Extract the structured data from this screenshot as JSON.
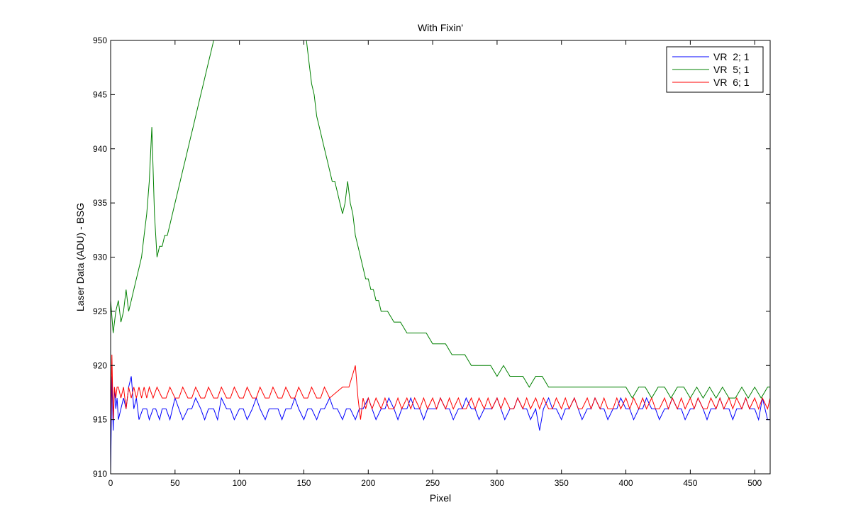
{
  "chart_data": {
    "type": "line",
    "title": "With Fixin'",
    "xlabel": "Pixel",
    "ylabel": "Laser Data (ADU) - BSG",
    "xlim": [
      0,
      512
    ],
    "ylim": [
      910,
      950
    ],
    "xticks": [
      0,
      50,
      100,
      150,
      200,
      250,
      300,
      350,
      400,
      450,
      500
    ],
    "yticks": [
      910,
      915,
      920,
      925,
      930,
      935,
      940,
      945,
      950
    ],
    "grid": false,
    "legend_position": "top-right",
    "series": [
      {
        "name": "VR  2; 1",
        "color": "#0000ff",
        "x": [
          0,
          1,
          2,
          3,
          4,
          5,
          6,
          8,
          10,
          12,
          14,
          16,
          18,
          20,
          22,
          25,
          28,
          30,
          33,
          35,
          38,
          40,
          43,
          46,
          50,
          53,
          56,
          60,
          63,
          66,
          70,
          73,
          76,
          80,
          83,
          86,
          90,
          93,
          96,
          100,
          103,
          106,
          110,
          113,
          116,
          120,
          123,
          126,
          130,
          133,
          136,
          140,
          143,
          146,
          150,
          153,
          156,
          160,
          163,
          166,
          170,
          173,
          176,
          180,
          183,
          186,
          190,
          193,
          196,
          200,
          203,
          206,
          210,
          213,
          216,
          220,
          223,
          226,
          230,
          233,
          236,
          240,
          243,
          246,
          250,
          253,
          256,
          260,
          263,
          266,
          270,
          273,
          276,
          280,
          283,
          286,
          290,
          293,
          296,
          300,
          303,
          306,
          310,
          313,
          316,
          320,
          323,
          326,
          330,
          333,
          336,
          340,
          343,
          346,
          350,
          353,
          356,
          360,
          363,
          366,
          370,
          373,
          376,
          380,
          383,
          386,
          390,
          393,
          396,
          400,
          403,
          406,
          410,
          413,
          416,
          420,
          423,
          426,
          430,
          433,
          436,
          440,
          443,
          446,
          450,
          453,
          456,
          460,
          463,
          466,
          470,
          473,
          476,
          480,
          483,
          486,
          490,
          493,
          496,
          500,
          503,
          506,
          510,
          512
        ],
        "values": [
          910,
          919,
          914,
          918,
          916,
          917,
          915,
          916,
          917,
          916,
          918,
          919,
          916,
          917,
          915,
          916,
          916,
          915,
          916,
          916,
          915,
          916,
          916,
          915,
          917,
          916,
          915,
          916,
          916,
          917,
          916,
          915,
          916,
          916,
          915,
          917,
          916,
          916,
          915,
          916,
          916,
          915,
          916,
          917,
          916,
          915,
          916,
          916,
          916,
          915,
          916,
          916,
          917,
          916,
          915,
          916,
          916,
          915,
          916,
          916,
          917,
          916,
          916,
          915,
          916,
          916,
          915,
          916,
          916,
          917,
          916,
          915,
          916,
          916,
          917,
          916,
          915,
          916,
          916,
          917,
          916,
          916,
          915,
          916,
          916,
          916,
          917,
          916,
          916,
          915,
          916,
          916,
          917,
          916,
          916,
          915,
          916,
          916,
          916,
          917,
          916,
          915,
          916,
          916,
          917,
          916,
          916,
          915,
          916,
          914,
          916,
          917,
          916,
          916,
          915,
          916,
          916,
          917,
          916,
          915,
          916,
          916,
          917,
          916,
          916,
          915,
          916,
          916,
          917,
          916,
          916,
          915,
          916,
          916,
          917,
          916,
          916,
          915,
          916,
          916,
          917,
          916,
          916,
          915,
          916,
          916,
          917,
          916,
          915,
          916,
          916,
          917,
          916,
          916,
          915,
          916,
          916,
          917,
          916,
          916,
          915,
          917,
          915,
          915
        ]
      },
      {
        "name": "VR  5; 1",
        "color": "#008000",
        "x": [
          0,
          2,
          4,
          6,
          8,
          10,
          12,
          14,
          16,
          18,
          20,
          22,
          24,
          26,
          28,
          30,
          32,
          34,
          36,
          38,
          40,
          42,
          44,
          46,
          48,
          50,
          52,
          54,
          56,
          58,
          60,
          62,
          64,
          66,
          68,
          70,
          72,
          74,
          76,
          78,
          80,
          152,
          154,
          156,
          158,
          160,
          162,
          164,
          166,
          168,
          170,
          172,
          174,
          176,
          178,
          180,
          182,
          184,
          186,
          188,
          190,
          192,
          194,
          196,
          198,
          200,
          202,
          204,
          206,
          208,
          210,
          215,
          220,
          225,
          230,
          235,
          240,
          245,
          250,
          255,
          260,
          265,
          270,
          275,
          280,
          285,
          290,
          295,
          300,
          305,
          310,
          315,
          320,
          325,
          330,
          335,
          340,
          345,
          350,
          355,
          360,
          370,
          380,
          390,
          400,
          405,
          410,
          415,
          420,
          425,
          430,
          435,
          440,
          445,
          450,
          455,
          460,
          465,
          470,
          475,
          480,
          485,
          490,
          495,
          500,
          505,
          510,
          512
        ],
        "values": [
          926,
          923,
          925,
          926,
          924,
          925,
          927,
          925,
          926,
          927,
          928,
          929,
          930,
          932,
          934,
          937,
          942,
          934,
          930,
          931,
          931,
          932,
          932,
          933,
          934,
          935,
          936,
          937,
          938,
          939,
          940,
          941,
          942,
          943,
          944,
          945,
          946,
          947,
          948,
          949,
          950,
          950,
          948,
          946,
          945,
          943,
          942,
          941,
          940,
          939,
          938,
          937,
          937,
          936,
          935,
          934,
          935,
          937,
          935,
          934,
          932,
          931,
          930,
          929,
          928,
          928,
          927,
          927,
          926,
          926,
          925,
          925,
          924,
          924,
          923,
          923,
          923,
          923,
          922,
          922,
          922,
          921,
          921,
          921,
          920,
          920,
          920,
          920,
          919,
          920,
          919,
          919,
          919,
          918,
          919,
          919,
          918,
          918,
          918,
          918,
          918,
          918,
          918,
          918,
          918,
          917,
          918,
          918,
          917,
          918,
          918,
          917,
          918,
          918,
          917,
          918,
          917,
          918,
          917,
          918,
          917,
          917,
          918,
          917,
          918,
          917,
          918,
          918
        ]
      },
      {
        "name": "VR  6; 1",
        "color": "#ff0000",
        "x": [
          0,
          1,
          2,
          3,
          4,
          5,
          6,
          8,
          10,
          12,
          14,
          16,
          18,
          20,
          22,
          24,
          26,
          28,
          30,
          33,
          36,
          40,
          43,
          46,
          50,
          53,
          56,
          60,
          63,
          66,
          70,
          73,
          76,
          80,
          83,
          86,
          90,
          93,
          96,
          100,
          103,
          106,
          110,
          113,
          116,
          120,
          123,
          126,
          130,
          133,
          136,
          140,
          143,
          146,
          150,
          153,
          156,
          160,
          163,
          166,
          170,
          175,
          180,
          185,
          190,
          192,
          194,
          196,
          198,
          200,
          203,
          206,
          210,
          213,
          216,
          220,
          223,
          226,
          230,
          233,
          236,
          240,
          243,
          246,
          250,
          253,
          256,
          260,
          263,
          266,
          270,
          273,
          276,
          280,
          283,
          286,
          290,
          293,
          296,
          300,
          303,
          306,
          310,
          313,
          316,
          320,
          323,
          326,
          330,
          333,
          336,
          340,
          343,
          346,
          350,
          353,
          356,
          360,
          363,
          366,
          370,
          373,
          376,
          380,
          383,
          386,
          390,
          393,
          396,
          400,
          403,
          406,
          410,
          413,
          416,
          420,
          423,
          426,
          430,
          433,
          436,
          440,
          443,
          446,
          450,
          453,
          456,
          460,
          463,
          466,
          470,
          473,
          476,
          480,
          483,
          486,
          490,
          493,
          496,
          500,
          503,
          506,
          510,
          512
        ],
        "values": [
          914,
          921,
          915,
          918,
          917,
          918,
          918,
          917,
          918,
          916,
          918,
          917,
          918,
          917,
          918,
          917,
          918,
          917,
          918,
          917,
          918,
          917,
          917,
          918,
          917,
          917,
          918,
          917,
          917,
          918,
          917,
          917,
          918,
          917,
          917,
          918,
          917,
          917,
          918,
          917,
          917,
          918,
          917,
          917,
          918,
          917,
          917,
          918,
          917,
          917,
          918,
          917,
          917,
          918,
          917,
          917,
          918,
          917,
          917,
          918,
          917,
          917.5,
          918,
          918,
          920,
          917,
          915,
          917,
          916,
          917,
          916,
          917,
          916,
          917,
          916,
          916,
          917,
          916,
          917,
          916,
          917,
          916,
          917,
          916,
          917,
          916,
          917,
          916,
          917,
          916,
          917,
          916,
          916,
          917,
          916,
          917,
          916,
          917,
          916,
          917,
          916,
          917,
          916,
          916,
          917,
          916,
          917,
          916,
          917,
          916,
          917,
          916,
          916,
          917,
          916,
          917,
          916,
          917,
          916,
          916,
          917,
          916,
          917,
          916,
          917,
          916,
          916,
          917,
          916,
          917,
          916,
          917,
          916,
          917,
          916,
          917,
          916,
          916,
          917,
          916,
          917,
          916,
          917,
          916,
          917,
          916,
          917,
          916,
          916,
          917,
          916,
          917,
          916,
          917,
          916,
          917,
          916,
          917,
          916,
          917,
          916,
          917,
          916,
          917
        ]
      }
    ]
  }
}
